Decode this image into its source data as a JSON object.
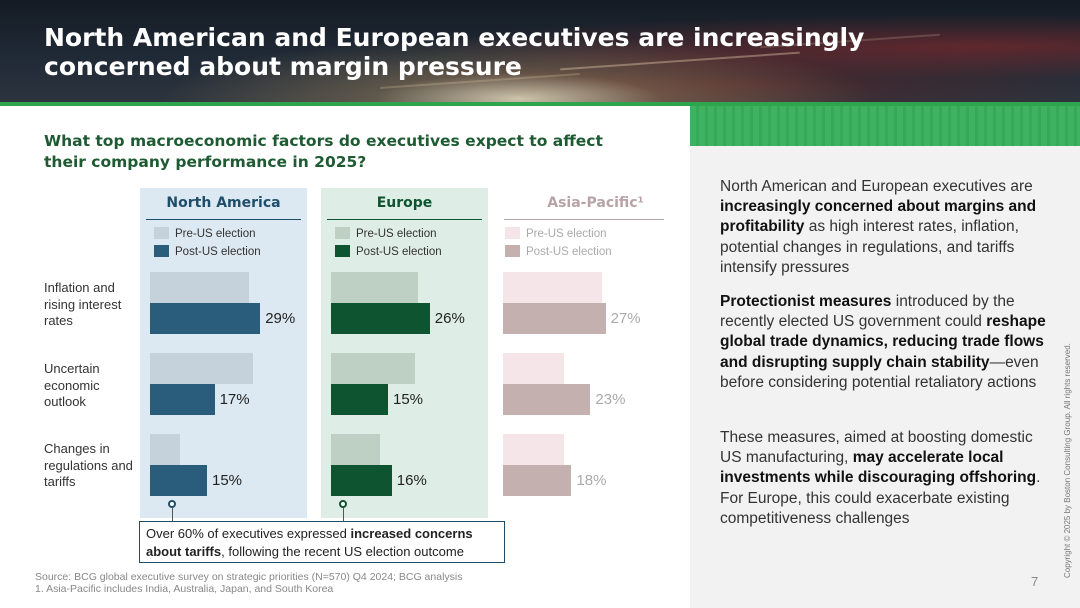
{
  "header": {
    "title": "North American and European executives are increasingly concerned about margin pressure"
  },
  "question": "What top macroeconomic factors do executives expect to affect their company performance in 2025?",
  "legend": {
    "pre": "Pre-US election",
    "post": "Post-US election"
  },
  "chart_data": {
    "type": "bar",
    "orientation": "horizontal",
    "title": "What top macroeconomic factors do executives expect to affect their company performance in 2025?",
    "categories": [
      "Inflation and rising interest rates",
      "Uncertain economic outlook",
      "Changes in regulations and tariffs"
    ],
    "panels": [
      {
        "name": "North America",
        "colors": {
          "pre": "#c5d2db",
          "post": "#2a5d7c",
          "header": "#1f4e6b"
        },
        "series": [
          {
            "name": "Pre-US election",
            "values": [
              26,
              27,
              8
            ]
          },
          {
            "name": "Post-US election",
            "values": [
              29,
              17,
              15
            ]
          }
        ],
        "labels": [
          "29%",
          "17%",
          "15%"
        ]
      },
      {
        "name": "Europe",
        "colors": {
          "pre": "#bed0c4",
          "post": "#0e5430",
          "header": "#0e5430"
        },
        "series": [
          {
            "name": "Pre-US election",
            "values": [
              23,
              22,
              13
            ]
          },
          {
            "name": "Post-US election",
            "values": [
              26,
              15,
              16
            ]
          }
        ],
        "labels": [
          "26%",
          "15%",
          "16%"
        ]
      },
      {
        "name": "Asia-Pacific¹",
        "colors": {
          "pre": "#f5e4e8",
          "post": "#c4b0ae",
          "header": "#b8a3a6"
        },
        "series": [
          {
            "name": "Pre-US election",
            "values": [
              26,
              16,
              16
            ]
          },
          {
            "name": "Post-US election",
            "values": [
              27,
              23,
              18
            ]
          }
        ],
        "labels": [
          "27%",
          "23%",
          "18%"
        ]
      }
    ],
    "xlim": [
      0,
      30
    ],
    "grid": false,
    "legend_position": "top of each panel"
  },
  "callout": {
    "text_before": "Over 60% of executives expressed ",
    "bold": "increased concerns about tariffs",
    "text_after": ", following the recent US election outcome"
  },
  "right_panel": {
    "p1_a": "North American and European executives are ",
    "p1_b": "increasingly concerned about margins and profitability",
    "p1_c": " as high interest rates, inflation, potential changes in regulations, and tariffs intensify pressures",
    "p2_a": "Protectionist measures",
    "p2_b": " introduced by the recently elected US government could ",
    "p2_c": "reshape global trade dynamics, reducing trade flows and disrupting supply chain stability",
    "p2_d": "—even before considering potential retaliatory actions",
    "p3_a": "These measures, aimed at boosting domestic US manufacturing, ",
    "p3_b": "may accelerate local investments while discouraging offshoring",
    "p3_c": ". For Europe, this could exacerbate existing competitiveness challenges"
  },
  "footer": {
    "source": "Source: BCG global executive survey on strategic priorities (N=570) Q4 2024; BCG analysis",
    "note": "1. Asia-Pacific includes India, Australia, Japan, and South Korea",
    "page": "7",
    "copyright": "Copyright © 2025 by Boston Consulting Group. All rights reserved."
  }
}
